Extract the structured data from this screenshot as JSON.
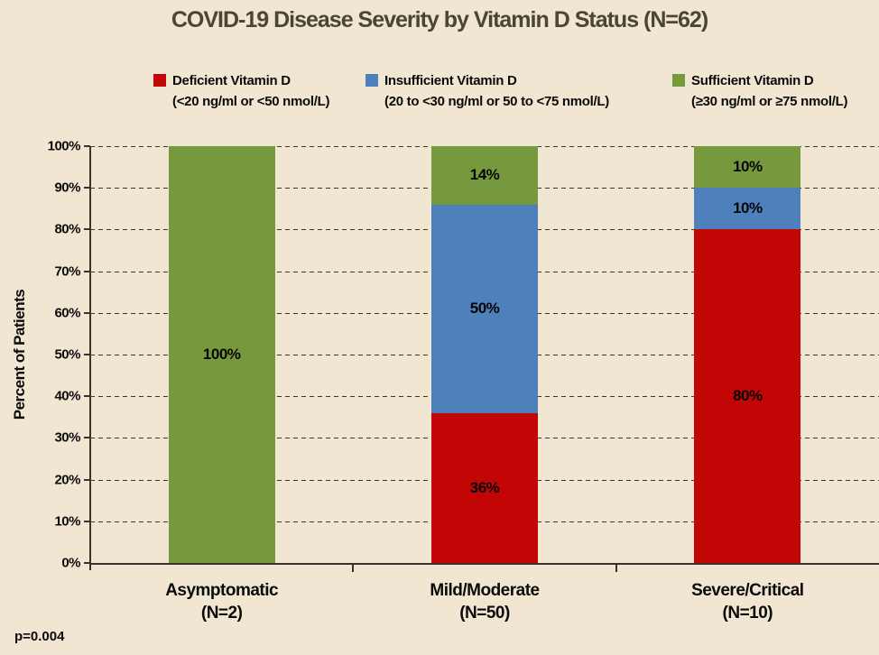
{
  "title": "COVID-19 Disease Severity by Vitamin D Status (N=62)",
  "colors": {
    "background": "#F0E6D2",
    "deficient": "#C20606",
    "insufficient": "#4E81BC",
    "sufficient": "#77993D",
    "axis": "#35332A",
    "title_text": "#4A4535",
    "label_text": "#0B0B0B"
  },
  "legend": [
    {
      "label": "Deficient Vitamin D",
      "sublabel": "(<20 ng/ml or <50 nmol/L)",
      "color": "#C20606"
    },
    {
      "label": "Insufficient Vitamin D",
      "sublabel": "(20 to <30 ng/ml or 50 to <75 nmol/L)",
      "color": "#4E81BC"
    },
    {
      "label": "Sufficient Vitamin D",
      "sublabel": "(≥30 ng/ml or ≥75 nmol/L)",
      "color": "#77993D"
    }
  ],
  "chart_data": {
    "type": "bar",
    "stacked": true,
    "title": "COVID-19 Disease Severity by Vitamin D Status (N=62)",
    "categories": [
      "Asymptomatic",
      "Mild/Moderate",
      "Severe/Critical"
    ],
    "category_sublabels": [
      "(N=2)",
      "(N=50)",
      "(N=10)"
    ],
    "series": [
      {
        "name": "Deficient Vitamin D (<20 ng/ml or <50 nmol/L)",
        "color": "#C20606",
        "values": [
          0,
          36,
          80
        ]
      },
      {
        "name": "Insufficient Vitamin D (20 to <30 ng/ml or 50 to <75 nmol/L)",
        "color": "#4E81BC",
        "values": [
          0,
          50,
          10
        ]
      },
      {
        "name": "Sufficient Vitamin D (≥30 ng/ml or ≥75 nmol/L)",
        "color": "#77993D",
        "values": [
          100,
          14,
          10
        ]
      }
    ],
    "data_label_format": "percent",
    "ylabel": "Percent of Patients",
    "yticks": [
      "0%",
      "10%",
      "20%",
      "30%",
      "40%",
      "50%",
      "60%",
      "70%",
      "80%",
      "90%",
      "100%"
    ],
    "ylim": [
      0,
      100
    ],
    "grid": "dashed horizontal",
    "legend_position": "top",
    "annotation": "p=0.004"
  }
}
